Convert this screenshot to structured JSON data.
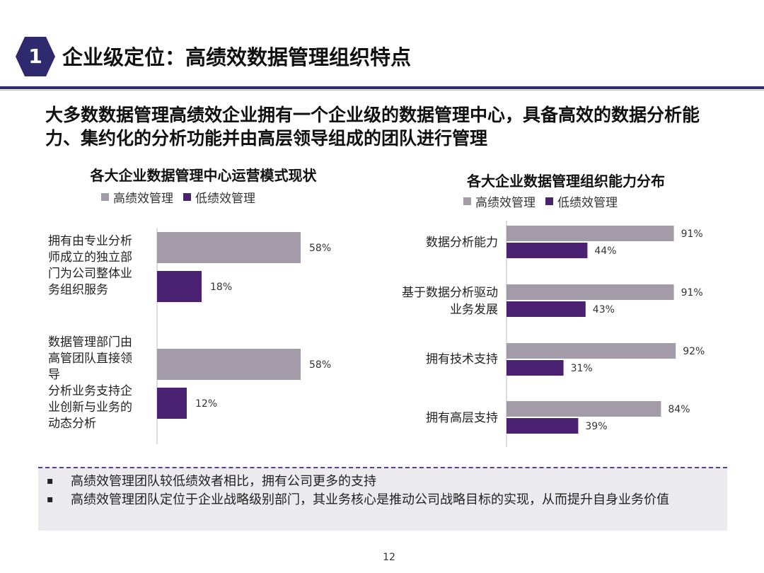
{
  "header": {
    "section_number": "1",
    "title": "企业级定位：高绩效数据管理组织特点"
  },
  "subtitle": "大多数数据管理高绩效企业拥有一个企业级的数据管理中心，具备高效的数据分析能力、集约化的分析功能并由高层领导组成的团队进行管理",
  "colors": {
    "high": "#a49ba8",
    "low": "#4b2272",
    "accent": "#2f2a6e"
  },
  "chart_data": [
    {
      "type": "bar",
      "orientation": "horizontal",
      "title": "各大企业数据管理中心运营模式现状",
      "legend": [
        "高绩效管理",
        "低绩效管理"
      ],
      "categories": [
        [
          "拥有由专业分析",
          "师成立的独立部",
          "门为公司整体业",
          "务组织服务"
        ],
        [
          "数据管理部门由",
          "高管团队直接领",
          "导",
          "分析业务支持企",
          "业创新与业务的",
          "动态分析"
        ]
      ],
      "series": [
        {
          "name": "高绩效管理",
          "values": [
            58,
            58
          ],
          "labels": [
            "58%",
            "58%"
          ]
        },
        {
          "name": "低绩效管理",
          "values": [
            18,
            12
          ],
          "labels": [
            "18%",
            "12%"
          ]
        }
      ],
      "unit": "%"
    },
    {
      "type": "bar",
      "orientation": "horizontal",
      "title": "各大企业数据管理组织能力分布",
      "legend": [
        "高绩效管理",
        "低绩效管理"
      ],
      "categories": [
        [
          "数据分析能力"
        ],
        [
          "基于数据分析驱动",
          "业务发展"
        ],
        [
          "拥有技术支持"
        ],
        [
          "拥有高层支持"
        ]
      ],
      "series": [
        {
          "name": "高绩效管理",
          "values": [
            91,
            91,
            92,
            84
          ],
          "labels": [
            "91%",
            "91%",
            "92%",
            "84%"
          ]
        },
        {
          "name": "低绩效管理",
          "values": [
            44,
            43,
            31,
            39
          ],
          "labels": [
            "44%",
            "43%",
            "31%",
            "39%"
          ]
        }
      ],
      "unit": "%"
    }
  ],
  "notes": {
    "bullet": "▪",
    "items": [
      "高绩效管理团队较低绩效者相比，拥有公司更多的支持",
      "高绩效管理团队定位于企业战略级别部门，其业务核心是推动公司战略目标的实现，从而提升自身业务价值"
    ]
  },
  "page_number": "12"
}
